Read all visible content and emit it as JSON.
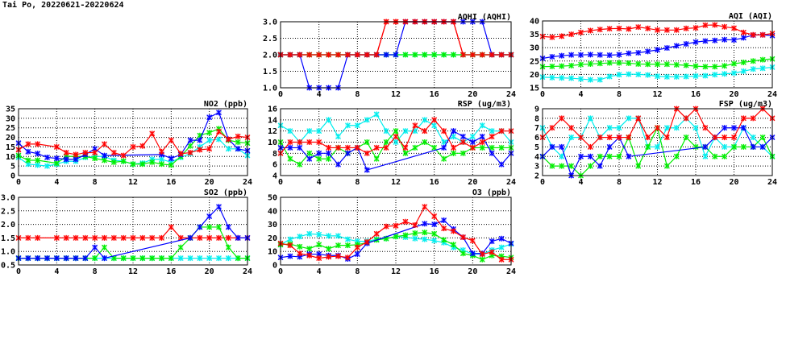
{
  "title": "Tai Po, 20220621-20220624",
  "colors": {
    "red": "#ff0000",
    "blue": "#0000ff",
    "green": "#00ee00",
    "cyan": "#00eeee"
  },
  "chart_data": [
    {
      "id": "aqhi",
      "type": "line",
      "title": "AQHI (AQHI)",
      "xlim": [
        0,
        24
      ],
      "xticks": [
        0,
        4,
        8,
        12,
        16,
        20,
        24
      ],
      "ylim": [
        1,
        3
      ],
      "ystep": 0.5,
      "ydec": 1,
      "grid": true,
      "series": [
        {
          "name": "red",
          "values": [
            2,
            2,
            2,
            2,
            2,
            2,
            2,
            2,
            2,
            2,
            2,
            3,
            3,
            3,
            3,
            3,
            3,
            3,
            3,
            2,
            2,
            2,
            2,
            2,
            2
          ]
        },
        {
          "name": "cyan",
          "values": [
            2,
            2,
            2,
            2,
            2,
            2,
            2,
            2,
            2,
            2,
            2,
            2,
            2,
            2,
            2,
            2,
            2,
            2,
            2,
            2,
            2,
            2,
            2,
            2,
            2
          ]
        },
        {
          "name": "green",
          "values": [
            2,
            2,
            2,
            2,
            2,
            2,
            2,
            2,
            2,
            2,
            2,
            2,
            2,
            2,
            2,
            2,
            2,
            2,
            2,
            2,
            2,
            2,
            2,
            2,
            2
          ]
        },
        {
          "name": "blue",
          "values": [
            2,
            2,
            2,
            1,
            1,
            1,
            1,
            2,
            2,
            2,
            2,
            2,
            2,
            3,
            3,
            3,
            3,
            3,
            3,
            3,
            3,
            3,
            2,
            2,
            2
          ]
        },
        {
          "name": "red",
          "values": [
            2,
            2,
            2,
            2,
            2,
            2,
            2,
            2,
            2,
            2,
            2,
            3,
            3,
            3,
            3,
            3,
            3,
            3,
            3,
            2,
            2,
            2,
            2,
            2,
            2
          ]
        }
      ]
    },
    {
      "id": "aqi",
      "type": "line",
      "title": "AQI (AQI)",
      "xlim": [
        0,
        24
      ],
      "xticks": [
        0,
        4,
        8,
        12,
        16,
        20,
        24
      ],
      "ylim": [
        15,
        40
      ],
      "ystep": 5,
      "ydec": 0,
      "grid": true,
      "series": [
        {
          "name": "cyan",
          "values": [
            19,
            18.8,
            18.7,
            18.6,
            18.3,
            18,
            18,
            19.2,
            19.9,
            20.1,
            20,
            19.8,
            19.3,
            19.1,
            19.1,
            19.2,
            19.4,
            19.5,
            19.9,
            20.2,
            20.5,
            21.2,
            22,
            22.3,
            22.7
          ]
        },
        {
          "name": "green",
          "values": [
            22.9,
            23,
            23.1,
            23.3,
            23.7,
            23.9,
            24.1,
            24.3,
            24.3,
            24.2,
            23.9,
            23.8,
            23.8,
            23.8,
            23.6,
            23.4,
            23.1,
            22.9,
            22.9,
            23.2,
            24,
            24.5,
            25,
            25.5,
            25.8
          ]
        },
        {
          "name": "blue",
          "values": [
            26,
            26.6,
            27,
            27.3,
            27.3,
            27.4,
            27.3,
            27.2,
            27.4,
            27.9,
            28.1,
            28.6,
            29.2,
            29.9,
            30.7,
            31.4,
            32.1,
            32.5,
            32.7,
            33,
            32.9,
            33.7,
            34.7,
            34.8,
            34.5
          ]
        },
        {
          "name": "red",
          "values": [
            34.2,
            33.9,
            34.3,
            35,
            35.7,
            36.4,
            36.8,
            37.1,
            37.2,
            37,
            37.7,
            37.2,
            36.6,
            36.6,
            36.6,
            37.2,
            37.4,
            38.4,
            38.5,
            37.8,
            37.3,
            35.7,
            34.8,
            34.8,
            35.3
          ]
        }
      ]
    },
    {
      "id": "no2",
      "type": "line",
      "title": "NO2 (ppb)",
      "xlim": [
        0,
        24
      ],
      "xticks": [
        0,
        4,
        8,
        12,
        16,
        20,
        24
      ],
      "ylim": [
        0,
        35
      ],
      "ystep": 5,
      "ydec": 0,
      "grid": true,
      "series": [
        {
          "name": "cyan",
          "values": [
            9.5,
            6,
            5.5,
            5,
            6,
            7.5,
            7.5,
            9.5,
            10,
            10,
            8,
            7.5,
            6,
            6.5,
            8.5,
            8.5,
            7,
            9.5,
            11.5,
            15,
            18.5,
            19,
            14,
            14,
            10.5
          ]
        },
        {
          "name": "green",
          "values": [
            10.5,
            8,
            8,
            null,
            6.5,
            10,
            10,
            10,
            9,
            8,
            7,
            7.5,
            6,
            6,
            7,
            6,
            5.5,
            10,
            15.5,
            21,
            22.5,
            24.5,
            18.5,
            17.5,
            17
          ]
        },
        {
          "name": "blue",
          "values": [
            17,
            12.5,
            11.5,
            9.5,
            9,
            8.5,
            8.5,
            11,
            14,
            10.5,
            null,
            null,
            null,
            null,
            null,
            11,
            9,
            11,
            18.5,
            18.5,
            30.5,
            33,
            19,
            14,
            13
          ]
        },
        {
          "name": "red",
          "values": [
            13.5,
            16.5,
            16.5,
            null,
            15,
            12,
            11,
            12,
            12,
            16.5,
            12,
            10.5,
            15,
            15.5,
            22,
            12.5,
            18.5,
            11.5,
            12,
            13.5,
            14,
            23,
            19,
            20.5,
            20
          ]
        }
      ]
    },
    {
      "id": "rsp",
      "type": "line",
      "title": "RSP (ug/m3)",
      "xlim": [
        0,
        24
      ],
      "xticks": [
        0,
        4,
        8,
        12,
        16,
        20,
        24
      ],
      "ylim": [
        4,
        16
      ],
      "ystep": 2,
      "ydec": 0,
      "grid": true,
      "series": [
        {
          "name": "cyan",
          "values": [
            13,
            12,
            10,
            12,
            12,
            14,
            11,
            13,
            13,
            14,
            15,
            12,
            10,
            12,
            12,
            14,
            13,
            10,
            11,
            10,
            11,
            13,
            12,
            12,
            10
          ]
        },
        {
          "name": "green",
          "values": [
            10,
            7,
            6,
            8,
            7,
            7,
            9,
            8,
            9,
            10,
            7,
            10,
            12,
            8,
            9,
            10,
            9,
            7,
            8,
            8,
            9,
            9,
            9,
            9,
            9
          ]
        },
        {
          "name": "blue",
          "values": [
            9,
            9,
            9,
            7,
            8,
            8,
            6,
            8,
            9,
            5,
            null,
            null,
            null,
            null,
            null,
            null,
            null,
            9,
            12,
            11,
            10,
            11,
            8,
            6,
            8
          ]
        },
        {
          "name": "red",
          "values": [
            8,
            10,
            10,
            10,
            10,
            9,
            9,
            9,
            9,
            8,
            9,
            9,
            11,
            9,
            13,
            12,
            14,
            12,
            9,
            10,
            9,
            10,
            11,
            12,
            12
          ]
        }
      ]
    },
    {
      "id": "fsp",
      "type": "line",
      "title": "FSP (ug/m3)",
      "xlim": [
        0,
        24
      ],
      "xticks": [
        0,
        4,
        8,
        12,
        16,
        20,
        24
      ],
      "ylim": [
        2,
        9
      ],
      "ystep": 1,
      "ydec": 0,
      "grid": true,
      "series": [
        {
          "name": "cyan",
          "values": [
            7,
            5,
            4,
            6,
            6,
            8,
            6,
            7,
            7,
            8,
            8,
            5,
            5,
            7,
            7,
            8,
            7,
            4,
            6,
            5,
            5,
            7,
            6,
            5,
            4
          ]
        },
        {
          "name": "green",
          "values": [
            4,
            3,
            3,
            3,
            2,
            3,
            4,
            4,
            4,
            6,
            3,
            5,
            7,
            3,
            4,
            6,
            5,
            5,
            4,
            4,
            5,
            5,
            5,
            6,
            4
          ]
        },
        {
          "name": "blue",
          "values": [
            4,
            5,
            5,
            2,
            4,
            4,
            3,
            5,
            6,
            4,
            null,
            null,
            null,
            null,
            null,
            null,
            null,
            5,
            6,
            7,
            7,
            7,
            5,
            5,
            6
          ]
        },
        {
          "name": "red",
          "values": [
            6,
            7,
            8,
            7,
            6,
            5,
            6,
            6,
            6,
            6,
            8,
            6,
            7,
            6,
            9,
            8,
            9,
            7,
            6,
            6,
            6,
            8,
            8,
            9,
            8
          ]
        }
      ]
    },
    {
      "id": "so2",
      "type": "line",
      "title": "SO2 (ppb)",
      "xlim": [
        0,
        24
      ],
      "xticks": [
        0,
        4,
        8,
        12,
        16,
        20,
        24
      ],
      "ylim": [
        0.5,
        3
      ],
      "ystep": 0.5,
      "ydec": 1,
      "grid": true,
      "series": [
        {
          "name": "red",
          "values": [
            1.5,
            1.5,
            1.5,
            null,
            1.5,
            1.5,
            1.5,
            1.5,
            1.5,
            1.5,
            1.5,
            1.5,
            1.5,
            1.5,
            1.5,
            1.5,
            1.9,
            1.5,
            1.5,
            1.5,
            1.5,
            1.5,
            1.5,
            1.5,
            1.5
          ]
        },
        {
          "name": "cyan",
          "values": [
            0.75,
            0.75,
            0.75,
            0.75,
            0.75,
            0.75,
            0.75,
            0.75,
            0.75,
            0.75,
            0.75,
            0.75,
            0.75,
            0.75,
            0.75,
            0.75,
            0.75,
            0.75,
            0.75,
            0.75,
            0.75,
            0.75,
            0.75,
            0.75,
            0.75
          ]
        },
        {
          "name": "green",
          "values": [
            0.75,
            0.75,
            0.75,
            0.75,
            0.75,
            0.75,
            0.75,
            0.75,
            0.75,
            1.15,
            0.75,
            0.75,
            0.75,
            0.75,
            0.75,
            0.75,
            0.75,
            1.15,
            1.5,
            1.9,
            1.9,
            1.9,
            1.15,
            0.75,
            0.75
          ]
        },
        {
          "name": "blue",
          "values": [
            0.75,
            0.75,
            0.75,
            0.75,
            0.75,
            0.75,
            0.75,
            0.75,
            1.15,
            0.75,
            null,
            null,
            null,
            null,
            null,
            null,
            null,
            null,
            1.5,
            1.9,
            2.3,
            2.65,
            1.9,
            1.5,
            1.5
          ]
        }
      ]
    },
    {
      "id": "o3",
      "type": "line",
      "title": "O3 (ppb)",
      "xlim": [
        0,
        24
      ],
      "xticks": [
        0,
        4,
        8,
        12,
        16,
        20,
        24
      ],
      "ylim": [
        0,
        50
      ],
      "ystep": 10,
      "ydec": 0,
      "grid": true,
      "series": [
        {
          "name": "cyan",
          "values": [
            15,
            19,
            21,
            23,
            22.5,
            21.5,
            21.5,
            19,
            17.5,
            17.5,
            19,
            19.5,
            21,
            20.5,
            19.5,
            19,
            18,
            16.5,
            13,
            11,
            8,
            8,
            11,
            13,
            15.5
          ]
        },
        {
          "name": "green",
          "values": [
            15,
            15.5,
            13.5,
            12,
            15,
            12,
            14.5,
            14.5,
            15,
            16.5,
            18.5,
            19.5,
            21,
            22,
            23.5,
            24,
            23,
            18.5,
            15,
            8.5,
            7,
            4,
            7,
            6.5,
            5.5
          ]
        },
        {
          "name": "blue",
          "values": [
            5.5,
            6.5,
            6,
            8,
            8,
            7,
            7,
            4.5,
            8,
            16,
            null,
            null,
            null,
            null,
            null,
            30.5,
            30,
            33,
            26.5,
            20.5,
            8.5,
            8.5,
            17.5,
            19.5,
            16
          ]
        },
        {
          "name": "red",
          "values": [
            16,
            14.5,
            8.5,
            7,
            5,
            6,
            6.5,
            5.5,
            13,
            17,
            23,
            28.5,
            29,
            32,
            29.5,
            43,
            36,
            27,
            25,
            20.5,
            18,
            8,
            9.5,
            4,
            4
          ]
        }
      ]
    }
  ]
}
